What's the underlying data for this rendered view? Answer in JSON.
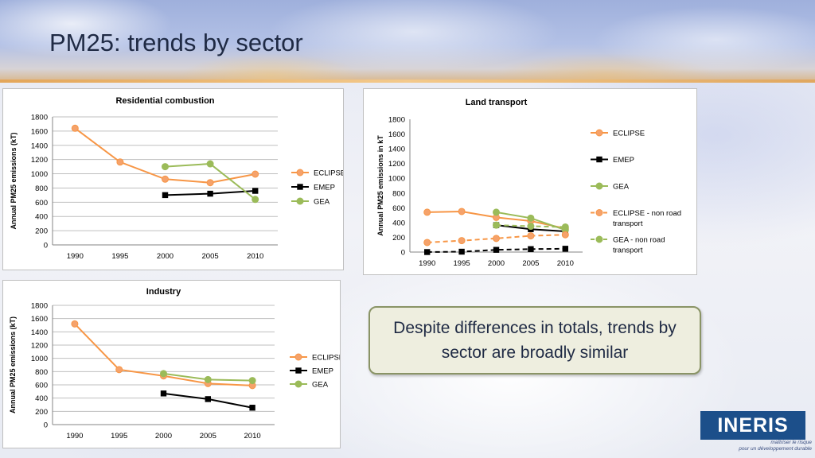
{
  "slide": {
    "title": "PM25: trends by sector",
    "callout": "Despite differences in totals, trends by sector are broadly similar",
    "logo_text": "INERIS",
    "logo_tagline_1": "maîtriser le risque",
    "logo_tagline_2": "pour un développement durable"
  },
  "colors": {
    "eclipse": "#f79646",
    "eclipse_marker_fill": "#f5a26b",
    "emep": "#000000",
    "gea": "#9bbb59",
    "grid": "#bfbfbf"
  },
  "chart_data": [
    {
      "id": "residential",
      "type": "line",
      "title": "Residential combustion",
      "ylabel": "Annual PM25 emissions (kT)",
      "xlabel": "",
      "categories": [
        "1990",
        "1995",
        "2000",
        "2005",
        "2010"
      ],
      "ylim": [
        0,
        1800
      ],
      "yticks": [
        0,
        200,
        400,
        600,
        800,
        1000,
        1200,
        1400,
        1600,
        1800
      ],
      "grid": true,
      "legend_position": "right",
      "series": [
        {
          "name": "ECLIPSE",
          "color": "#f79646",
          "marker": "circle",
          "dashed": false,
          "values": [
            1640,
            1165,
            925,
            875,
            995
          ]
        },
        {
          "name": "EMEP",
          "color": "#000000",
          "marker": "square",
          "dashed": false,
          "values": [
            null,
            null,
            700,
            720,
            760
          ]
        },
        {
          "name": "GEA",
          "color": "#9bbb59",
          "marker": "circle",
          "dashed": false,
          "values": [
            null,
            null,
            1100,
            1140,
            640
          ]
        }
      ]
    },
    {
      "id": "land-transport",
      "type": "line",
      "title": "Land transport",
      "ylabel": "Annual PM25 emissions in kT",
      "xlabel": "",
      "categories": [
        "1990",
        "1995",
        "2000",
        "2005",
        "2010"
      ],
      "ylim": [
        0,
        1800
      ],
      "yticks": [
        0,
        200,
        400,
        600,
        800,
        1000,
        1200,
        1400,
        1600,
        1800
      ],
      "grid": false,
      "legend_position": "right",
      "series": [
        {
          "name": "ECLIPSE",
          "color": "#f79646",
          "marker": "circle",
          "dashed": false,
          "values": [
            540,
            550,
            470,
            420,
            320
          ]
        },
        {
          "name": "EMEP",
          "color": "#000000",
          "marker": "square",
          "dashed": false,
          "values": [
            null,
            null,
            365,
            310,
            280
          ]
        },
        {
          "name": "GEA",
          "color": "#9bbb59",
          "marker": "circle",
          "dashed": false,
          "values": [
            null,
            null,
            540,
            460,
            300
          ]
        },
        {
          "name": "ECLIPSE - non road transport",
          "color": "#f79646",
          "marker": "circle",
          "dashed": true,
          "values": [
            130,
            155,
            185,
            220,
            235
          ]
        },
        {
          "name": "EMEP",
          "color": "#000000",
          "marker": "square",
          "dashed": true,
          "legend": false,
          "values": [
            0,
            5,
            30,
            40,
            45
          ]
        },
        {
          "name": "GEA - non road transport",
          "color": "#9bbb59",
          "marker": "circle",
          "dashed": true,
          "values": [
            null,
            null,
            365,
            350,
            340
          ]
        }
      ]
    },
    {
      "id": "industry",
      "type": "line",
      "title": "Industry",
      "ylabel": "Annual PM25 emissions (kT)",
      "xlabel": "",
      "categories": [
        "1990",
        "1995",
        "2000",
        "2005",
        "2010"
      ],
      "ylim": [
        0,
        1800
      ],
      "yticks": [
        0,
        200,
        400,
        600,
        800,
        1000,
        1200,
        1400,
        1600,
        1800
      ],
      "grid": true,
      "legend_position": "right",
      "series": [
        {
          "name": "ECLIPSE",
          "color": "#f79646",
          "marker": "circle",
          "dashed": false,
          "values": [
            1520,
            830,
            735,
            620,
            590
          ]
        },
        {
          "name": "EMEP",
          "color": "#000000",
          "marker": "square",
          "dashed": false,
          "values": [
            null,
            null,
            470,
            385,
            255
          ]
        },
        {
          "name": "GEA",
          "color": "#9bbb59",
          "marker": "circle",
          "dashed": false,
          "values": [
            null,
            null,
            770,
            680,
            665
          ]
        }
      ]
    }
  ]
}
